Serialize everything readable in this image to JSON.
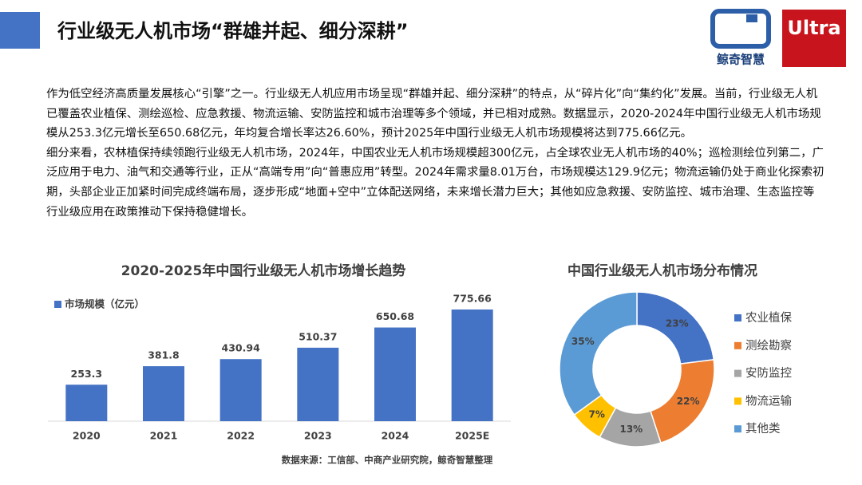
{
  "header": {
    "title": "行业级无人机市场“群雄并起、细分深耕”"
  },
  "logo": {
    "brand": "鲸奇智慧",
    "badge": "Ultra"
  },
  "paragraphs": [
    "作为低空经济高质量发展核心“引擎”之一。行业级无人机应用市场呈现“群雄并起、细分深耕”的特点，从“碎片化”向“集约化”发展。当前，行业级无人机已覆盖农业植保、测绘巡检、应急救援、物流运输、安防监控和城市治理等多个领域，并已相对成熟。数据显示，2020-2024年中国行业级无人机市场规模从253.3亿元增长至650.68亿元，年均复合增长率达26.60%，预计2025年中国行业级无人机市场规模将达到775.66亿元。",
    "细分来看，农林植保持续领跑行业级无人机市场，2024年，中国农业无人机市场规模超300亿元，占全球农业无人机市场的40%；巡检测绘位列第二，广泛应用于电力、油气和交通等行业，正从“高端专用”向“普惠应用”转型。2024年需求量8.01万台，市场规模达129.9亿元；物流运输仍处于商业化探索初期，头部企业正加紧时间完成终端布局，逐步形成“地面+空中”立体配送网络，未来增长潜力巨大；其他如应急救援、安防监控、城市治理、生态监控等行业级应用在政策推动下保持稳健增长。"
  ],
  "chart_data": [
    {
      "type": "bar",
      "title": "2020-2025年中国行业级无人机市场增长趋势",
      "categories": [
        "2020",
        "2021",
        "2022",
        "2023",
        "2024",
        "2025E"
      ],
      "series": [
        {
          "name": "市场规模（亿元）",
          "color": "#4472c4",
          "values": [
            253.3,
            381.8,
            430.94,
            510.37,
            650.68,
            775.66
          ]
        }
      ],
      "source": "数据来源：工信部、中商产业研究院，鲸奇智慧整理"
    },
    {
      "type": "pie",
      "title": "中国行业级无人机市场分布情况",
      "categories": [
        "农业植保",
        "测绘勘察",
        "安防监控",
        "物流运输",
        "其他类"
      ],
      "values": [
        23,
        22,
        13,
        7,
        35
      ],
      "value_labels": [
        "23%",
        "22%",
        "13%",
        "7%",
        "35%"
      ],
      "colors": [
        "#4472c4",
        "#ed7d31",
        "#a5a5a5",
        "#ffc000",
        "#5b9bd5"
      ]
    }
  ]
}
